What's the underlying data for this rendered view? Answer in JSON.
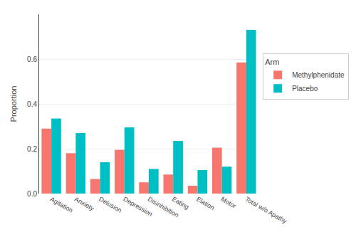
{
  "chart_data": {
    "type": "bar",
    "categories": [
      "Agitation",
      "Anxiety",
      "Delusion",
      "Depression",
      "Disinhibition",
      "Eating",
      "Elation",
      "Motor",
      "Total w/o Apathy"
    ],
    "series": [
      {
        "name": "Methylphenidate",
        "color": "#F8766D",
        "values": [
          0.29,
          0.18,
          0.065,
          0.195,
          0.05,
          0.085,
          0.035,
          0.205,
          0.585
        ]
      },
      {
        "name": "Placebo",
        "color": "#00BFC4",
        "values": [
          0.335,
          0.27,
          0.14,
          0.295,
          0.11,
          0.235,
          0.105,
          0.12,
          0.73
        ]
      }
    ],
    "ylabel": "Proportion",
    "legend_title": "Arm",
    "ylim": [
      0,
      0.8
    ],
    "yticks": [
      {
        "value": 0,
        "label": "0.0"
      },
      0.2,
      0.4,
      0.6
    ],
    "grid": true,
    "legend": "right"
  }
}
